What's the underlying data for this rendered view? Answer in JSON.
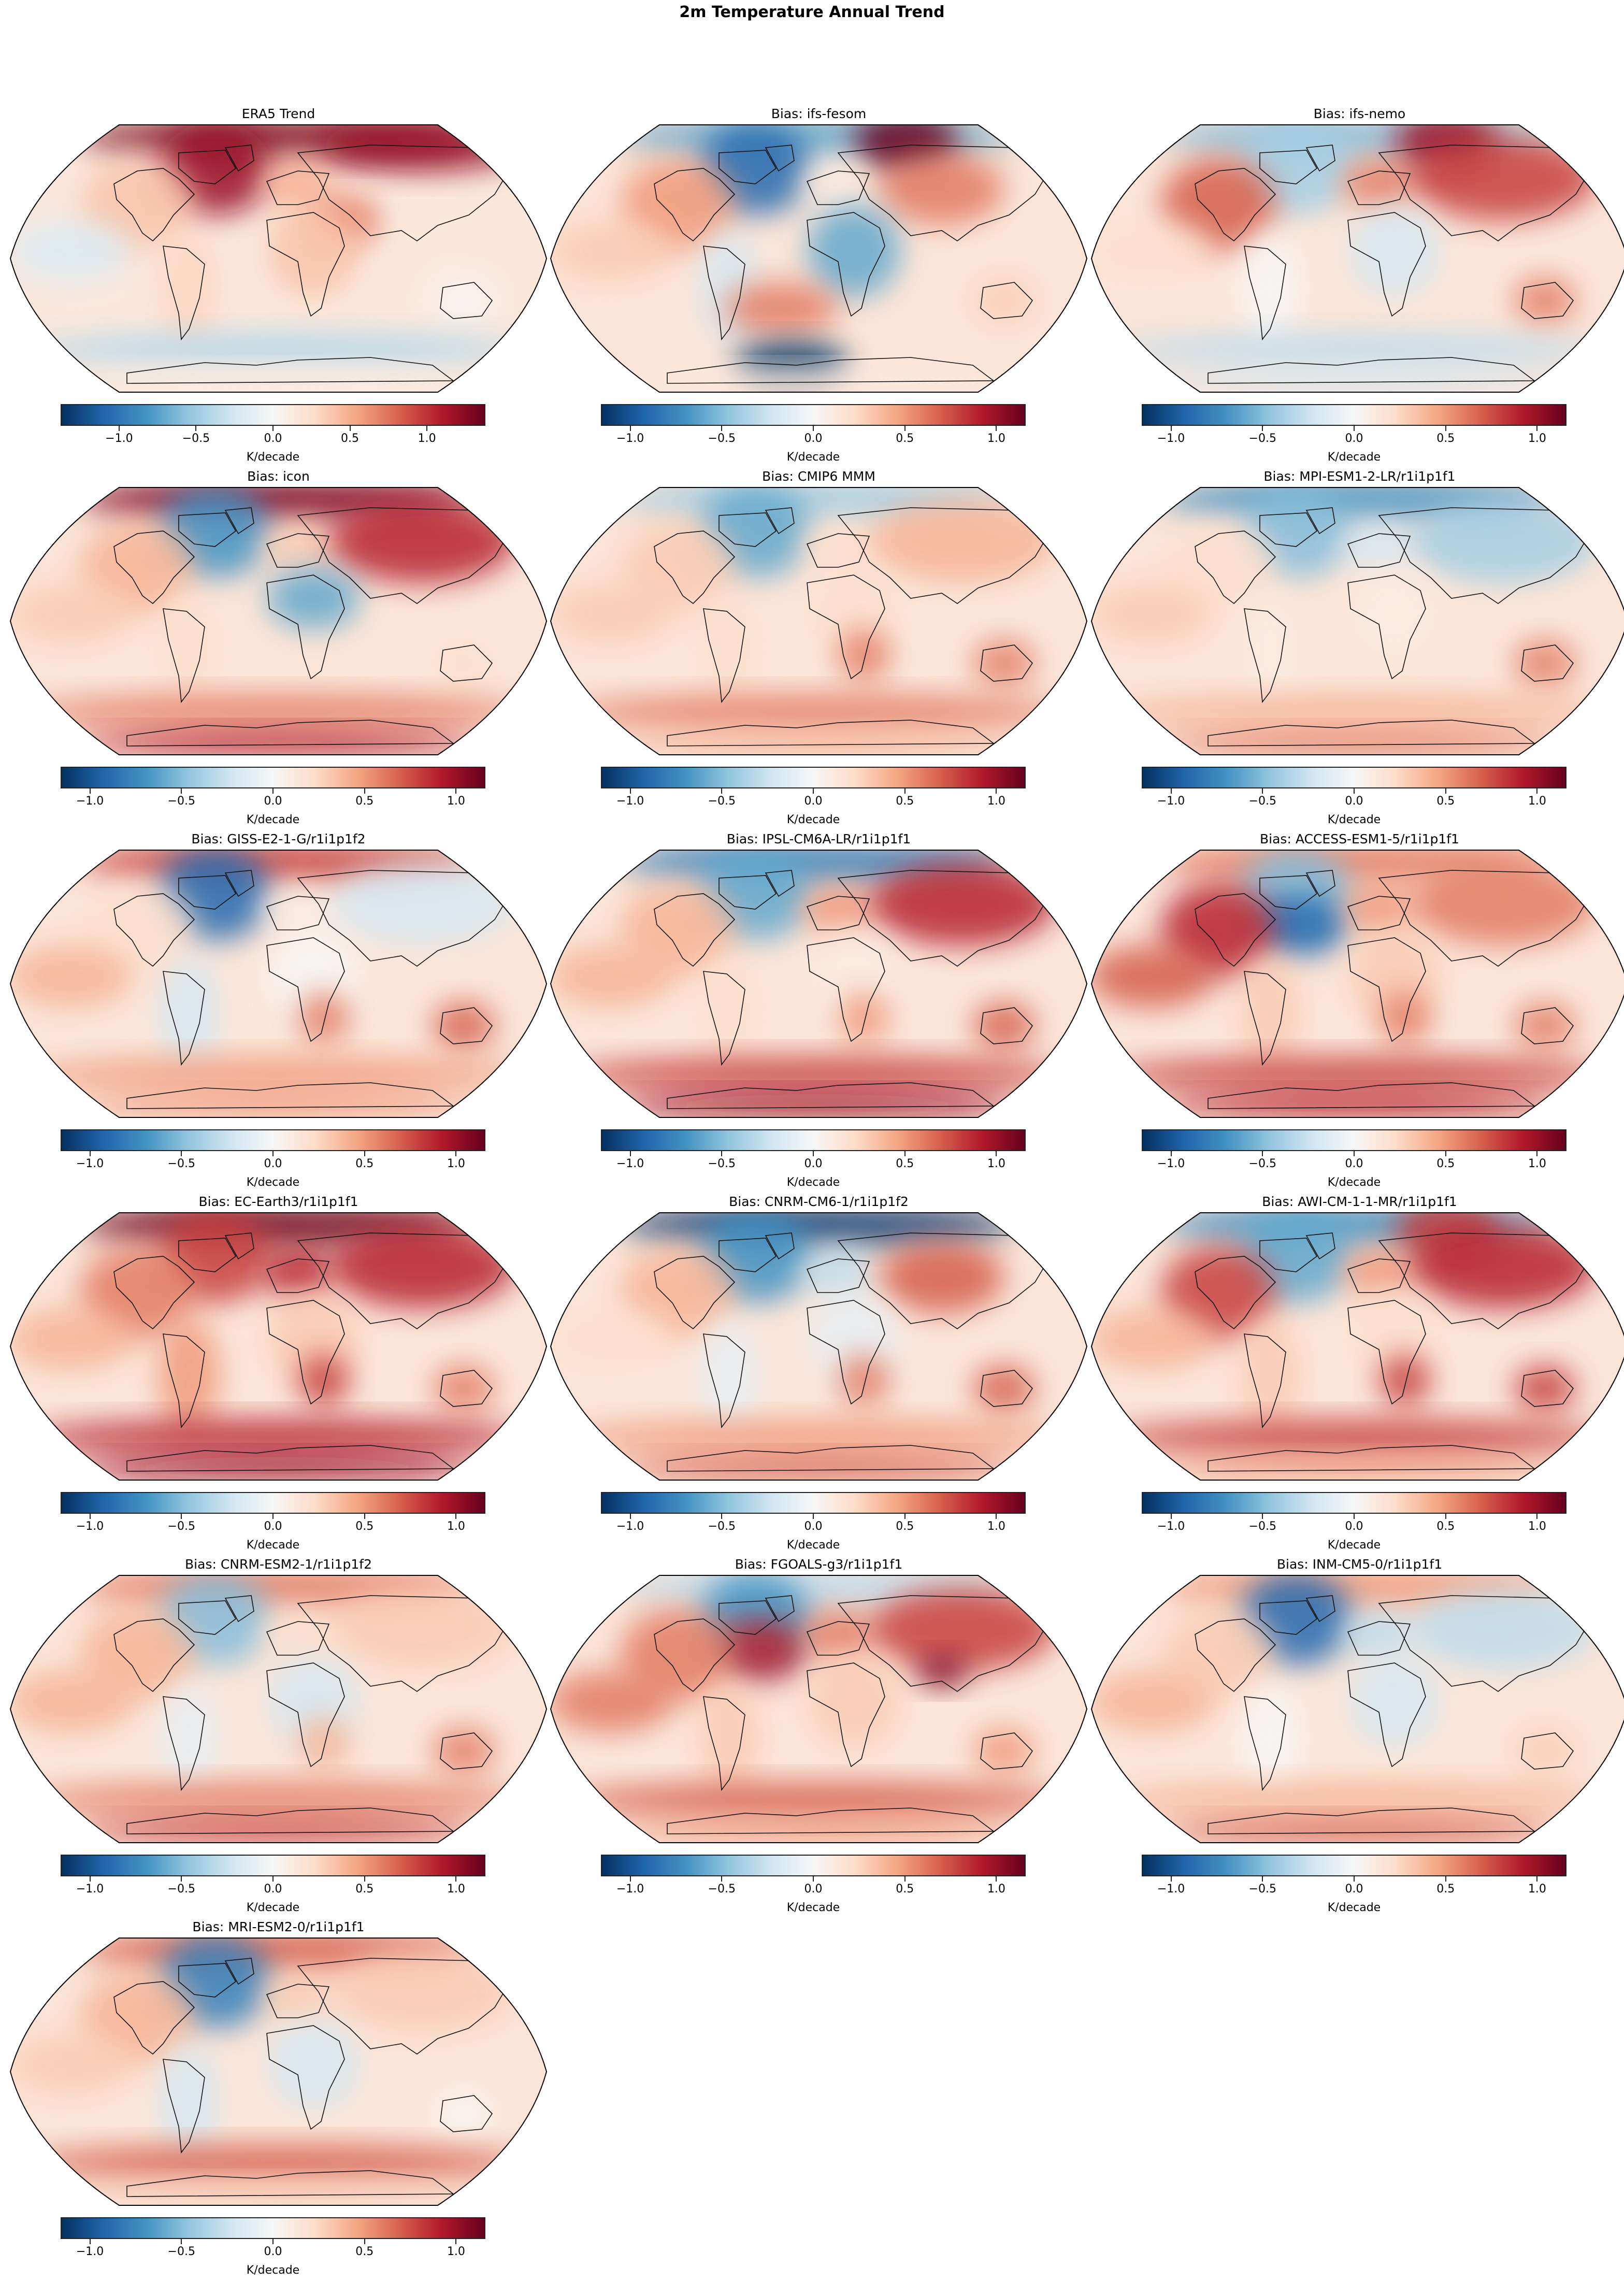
{
  "figure": {
    "suptitle": "2m Temperature Annual Trend",
    "colormap": "RdBu_r",
    "colormap_stops": [
      "#053061",
      "#2166ac",
      "#4393c3",
      "#92c5de",
      "#d1e5f0",
      "#f7f7f7",
      "#fddbc7",
      "#f4a582",
      "#d6604d",
      "#b2182b",
      "#67001f"
    ],
    "projection": "Robinson"
  },
  "panels": [
    {
      "title": "ERA5 Trend",
      "vmin": -1.38,
      "vmax": 1.38,
      "ticks": [
        "−1.0",
        "−0.5",
        "0.0",
        "0.5",
        "1.0"
      ],
      "cbar_label": "K/decade"
    },
    {
      "title": "Bias: ifs-fesom",
      "vmin": -1.16,
      "vmax": 1.16,
      "ticks": [
        "−1.0",
        "−0.5",
        "0.0",
        "0.5",
        "1.0"
      ],
      "cbar_label": "K/decade"
    },
    {
      "title": "Bias: ifs-nemo",
      "vmin": -1.16,
      "vmax": 1.16,
      "ticks": [
        "−1.0",
        "−0.5",
        "0.0",
        "0.5",
        "1.0"
      ],
      "cbar_label": "K/decade"
    },
    {
      "title": "Bias: icon",
      "vmin": -1.16,
      "vmax": 1.16,
      "ticks": [
        "−1.0",
        "−0.5",
        "0.0",
        "0.5",
        "1.0"
      ],
      "cbar_label": "K/decade"
    },
    {
      "title": "Bias: CMIP6 MMM",
      "vmin": -1.16,
      "vmax": 1.16,
      "ticks": [
        "−1.0",
        "−0.5",
        "0.0",
        "0.5",
        "1.0"
      ],
      "cbar_label": "K/decade"
    },
    {
      "title": "Bias: MPI-ESM1-2-LR/r1i1p1f1",
      "vmin": -1.16,
      "vmax": 1.16,
      "ticks": [
        "−1.0",
        "−0.5",
        "0.0",
        "0.5",
        "1.0"
      ],
      "cbar_label": "K/decade"
    },
    {
      "title": "Bias: GISS-E2-1-G/r1i1p1f2",
      "vmin": -1.16,
      "vmax": 1.16,
      "ticks": [
        "−1.0",
        "−0.5",
        "0.0",
        "0.5",
        "1.0"
      ],
      "cbar_label": "K/decade"
    },
    {
      "title": "Bias: IPSL-CM6A-LR/r1i1p1f1",
      "vmin": -1.16,
      "vmax": 1.16,
      "ticks": [
        "−1.0",
        "−0.5",
        "0.0",
        "0.5",
        "1.0"
      ],
      "cbar_label": "K/decade"
    },
    {
      "title": "Bias: ACCESS-ESM1-5/r1i1p1f1",
      "vmin": -1.16,
      "vmax": 1.16,
      "ticks": [
        "−1.0",
        "−0.5",
        "0.0",
        "0.5",
        "1.0"
      ],
      "cbar_label": "K/decade"
    },
    {
      "title": "Bias: EC-Earth3/r1i1p1f1",
      "vmin": -1.16,
      "vmax": 1.16,
      "ticks": [
        "−1.0",
        "−0.5",
        "0.0",
        "0.5",
        "1.0"
      ],
      "cbar_label": "K/decade"
    },
    {
      "title": "Bias: CNRM-CM6-1/r1i1p1f2",
      "vmin": -1.16,
      "vmax": 1.16,
      "ticks": [
        "−1.0",
        "−0.5",
        "0.0",
        "0.5",
        "1.0"
      ],
      "cbar_label": "K/decade"
    },
    {
      "title": "Bias: AWI-CM-1-1-MR/r1i1p1f1",
      "vmin": -1.16,
      "vmax": 1.16,
      "ticks": [
        "−1.0",
        "−0.5",
        "0.0",
        "0.5",
        "1.0"
      ],
      "cbar_label": "K/decade"
    },
    {
      "title": "Bias: CNRM-ESM2-1/r1i1p1f2",
      "vmin": -1.16,
      "vmax": 1.16,
      "ticks": [
        "−1.0",
        "−0.5",
        "0.0",
        "0.5",
        "1.0"
      ],
      "cbar_label": "K/decade"
    },
    {
      "title": "Bias: FGOALS-g3/r1i1p1f1",
      "vmin": -1.16,
      "vmax": 1.16,
      "ticks": [
        "−1.0",
        "−0.5",
        "0.0",
        "0.5",
        "1.0"
      ],
      "cbar_label": "K/decade"
    },
    {
      "title": "Bias: INM-CM5-0/r1i1p1f1",
      "vmin": -1.16,
      "vmax": 1.16,
      "ticks": [
        "−1.0",
        "−0.5",
        "0.0",
        "0.5",
        "1.0"
      ],
      "cbar_label": "K/decade"
    },
    {
      "title": "Bias: MRI-ESM2-0/r1i1p1f1",
      "vmin": -1.16,
      "vmax": 1.16,
      "ticks": [
        "−1.0",
        "−0.5",
        "0.0",
        "0.5",
        "1.0"
      ],
      "cbar_label": "K/decade"
    }
  ],
  "chart_data": {
    "type": "heatmap",
    "title": "2m Temperature Annual Trend",
    "layout": {
      "rows": 6,
      "cols": 3,
      "n_panels": 16,
      "legend_position": "colorbar below each panel",
      "grid": false
    },
    "units": "K/decade",
    "panels": [
      {
        "title": "ERA5 Trend",
        "colorbar_range": [
          -1.38,
          1.38
        ],
        "tick_values": [
          -1.0,
          -0.5,
          0.0,
          0.5,
          1.0
        ],
        "pattern": {
          "arctic": 1.3,
          "canada_greenland": 1.2,
          "siberia_coast": 1.2,
          "n_america": 0.4,
          "europe": 0.5,
          "middle_east": 0.7,
          "africa": 0.4,
          "s_america": 0.3,
          "australia": 0.0,
          "eq_pacific": -0.2,
          "southern_ocean": -0.4,
          "antarctica": 0.1
        }
      },
      {
        "title": "Bias: ifs-fesom",
        "colorbar_range": [
          -1.16,
          1.16
        ],
        "tick_values": [
          -1.0,
          -0.5,
          0.0,
          0.5,
          1.0
        ],
        "pattern": {
          "arctic": -0.6,
          "barents_sea": 1.2,
          "canada_greenland": -0.9,
          "n_america": 0.5,
          "europe": 0.1,
          "central_asia": 0.6,
          "africa": -0.6,
          "s_america": -0.2,
          "australia": 0.3,
          "eq_pacific": 0.3,
          "south_atlantic": 0.6,
          "weddell_sea": -1.2,
          "antarctica": 0.1
        }
      },
      {
        "title": "Bias: ifs-nemo",
        "colorbar_range": [
          -1.16,
          1.16
        ],
        "tick_values": [
          -1.0,
          -0.5,
          0.0,
          0.5,
          1.0
        ],
        "pattern": {
          "arctic": -0.5,
          "barents_sea": 1.0,
          "canada_greenland": -0.4,
          "n_america": 0.7,
          "europe": 0.6,
          "siberia": 0.8,
          "africa": -0.2,
          "s_america": 0.0,
          "australia": 0.6,
          "eq_pacific": 0.2,
          "southern_ocean": -0.3,
          "antarctica": -0.2
        }
      },
      {
        "title": "Bias: icon",
        "colorbar_range": [
          -1.16,
          1.16
        ],
        "tick_values": [
          -1.0,
          -0.5,
          0.0,
          0.5,
          1.0
        ],
        "pattern": {
          "arctic": 1.1,
          "canada_greenland": -0.7,
          "n_america": 0.4,
          "europe": 0.3,
          "siberia": 0.9,
          "sahara_sahel": -0.6,
          "s_america": 0.2,
          "australia": 0.2,
          "eq_pacific": 0.3,
          "southern_ocean": 0.6,
          "antarctica": 0.9
        }
      },
      {
        "title": "Bias: CMIP6 MMM",
        "colorbar_range": [
          -1.16,
          1.16
        ],
        "tick_values": [
          -1.0,
          -0.5,
          0.0,
          0.5,
          1.0
        ],
        "pattern": {
          "arctic": -0.4,
          "canada_greenland": -0.6,
          "n_america": 0.3,
          "europe": 0.2,
          "siberia": 0.4,
          "africa": 0.2,
          "southern_africa": 0.6,
          "s_america": 0.2,
          "australia": 0.6,
          "eq_pacific": 0.3,
          "southern_ocean": 0.6,
          "antarctica": 0.4
        }
      },
      {
        "title": "Bias: MPI-ESM1-2-LR/r1i1p1f1",
        "colorbar_range": [
          -1.16,
          1.16
        ],
        "tick_values": [
          -1.0,
          -0.5,
          0.0,
          0.5,
          1.0
        ],
        "pattern": {
          "arctic": -0.7,
          "canada_greenland": -0.5,
          "n_america": 0.2,
          "europe": -0.2,
          "siberia": -0.4,
          "africa": 0.1,
          "s_america": 0.1,
          "australia": 0.6,
          "eq_pacific": 0.3,
          "southern_ocean": 0.4,
          "antarctica": 0.6
        }
      },
      {
        "title": "Bias: GISS-E2-1-G/r1i1p1f2",
        "colorbar_range": [
          -1.16,
          1.16
        ],
        "tick_values": [
          -1.0,
          -0.5,
          0.0,
          0.5,
          1.0
        ],
        "pattern": {
          "arctic": 0.8,
          "canada_greenland": -0.9,
          "n_america": 0.2,
          "europe": 0.1,
          "siberia": -0.2,
          "africa": 0.0,
          "southern_africa": 0.6,
          "s_america": -0.2,
          "australia": 0.7,
          "eq_pacific": 0.4,
          "southern_ocean": 0.5,
          "antarctica": 0.5
        }
      },
      {
        "title": "Bias: IPSL-CM6A-LR/r1i1p1f1",
        "colorbar_range": [
          -1.16,
          1.16
        ],
        "tick_values": [
          -1.0,
          -0.5,
          0.0,
          0.5,
          1.0
        ],
        "pattern": {
          "arctic": -0.8,
          "canada_greenland": -0.6,
          "n_america": 0.4,
          "europe": 0.5,
          "siberia": 0.9,
          "africa": 0.1,
          "southern_africa": 0.5,
          "s_america": 0.2,
          "australia": 0.7,
          "eq_pacific": 0.4,
          "southern_ocean": 0.8,
          "antarctica": 1.0
        }
      },
      {
        "title": "Bias: ACCESS-ESM1-5/r1i1p1f1",
        "colorbar_range": [
          -1.16,
          1.16
        ],
        "tick_values": [
          -1.0,
          -0.5,
          0.0,
          0.5,
          1.0
        ],
        "pattern": {
          "arctic": 0.6,
          "canada_greenland": -0.5,
          "n_atlantic": -0.9,
          "n_america": 0.9,
          "europe": 0.5,
          "siberia": 0.6,
          "africa": 0.3,
          "southern_africa": 0.6,
          "s_america": 0.3,
          "australia": 0.6,
          "eq_pacific": 0.7,
          "southern_ocean": 0.8,
          "antarctica": 0.9
        }
      },
      {
        "title": "Bias: EC-Earth3/r1i1p1f1",
        "colorbar_range": [
          -1.16,
          1.16
        ],
        "tick_values": [
          -1.0,
          -0.5,
          0.0,
          0.5,
          1.0
        ],
        "pattern": {
          "arctic": 1.2,
          "canada_greenland": 0.8,
          "n_america": 0.6,
          "europe": 0.9,
          "siberia": 0.9,
          "africa": 0.3,
          "southern_africa": 0.8,
          "s_america": 0.5,
          "australia": 0.6,
          "eq_pacific": 0.4,
          "southern_ocean": 0.9,
          "antarctica": 1.0
        }
      },
      {
        "title": "Bias: CNRM-CM6-1/r1i1p1f2",
        "colorbar_range": [
          -1.16,
          1.16
        ],
        "tick_values": [
          -1.0,
          -0.5,
          0.0,
          0.5,
          1.0
        ],
        "pattern": {
          "arctic": -1.1,
          "canada_greenland": -0.7,
          "n_america": 0.4,
          "europe": -0.3,
          "central_asia": 0.7,
          "africa": -0.1,
          "southern_africa": 0.6,
          "s_america": -0.1,
          "australia": 0.7,
          "eq_pacific": 0.2,
          "southern_ocean": 0.5,
          "antarctica": 0.7
        }
      },
      {
        "title": "Bias: AWI-CM-1-1-MR/r1i1p1f1",
        "colorbar_range": [
          -1.16,
          1.16
        ],
        "tick_values": [
          -1.0,
          -0.5,
          0.0,
          0.5,
          1.0
        ],
        "pattern": {
          "arctic": -0.7,
          "barents_sea": 0.8,
          "canada_greenland": -0.6,
          "n_america": 0.8,
          "europe": 0.5,
          "siberia": 0.9,
          "africa": 0.2,
          "southern_africa": 0.8,
          "s_america": 0.3,
          "australia": 0.8,
          "eq_pacific": 0.4,
          "southern_ocean": 0.8,
          "antarctica": 0.5
        }
      },
      {
        "title": "Bias: CNRM-ESM2-1/r1i1p1f2",
        "colorbar_range": [
          -1.16,
          1.16
        ],
        "tick_values": [
          -1.0,
          -0.5,
          0.0,
          0.5,
          1.0
        ],
        "pattern": {
          "arctic": 0.6,
          "canada_greenland": -0.5,
          "n_america": 0.4,
          "europe": 0.2,
          "siberia": 0.3,
          "africa": -0.2,
          "southern_africa": 0.4,
          "s_america": -0.1,
          "australia": 0.6,
          "eq_pacific": 0.4,
          "southern_ocean": 0.6,
          "antarctica": 0.8
        }
      },
      {
        "title": "Bias: FGOALS-g3/r1i1p1f1",
        "colorbar_range": [
          -1.16,
          1.16
        ],
        "tick_values": [
          -1.0,
          -0.5,
          0.0,
          0.5,
          1.0
        ],
        "pattern": {
          "arctic": -0.3,
          "canada_greenland": -0.7,
          "n_atlantic": 0.9,
          "n_america": 0.6,
          "europe": 0.6,
          "siberia": 0.8,
          "tibet": 1.1,
          "africa": 0.3,
          "s_america": 0.3,
          "australia": 0.5,
          "eq_pacific": 0.6,
          "southern_ocean": 0.7,
          "antarctica": 0.5
        }
      },
      {
        "title": "Bias: INM-CM5-0/r1i1p1f1",
        "colorbar_range": [
          -1.16,
          1.16
        ],
        "tick_values": [
          -1.0,
          -0.5,
          0.0,
          0.5,
          1.0
        ],
        "pattern": {
          "arctic": 0.5,
          "canada_greenland": -0.9,
          "n_america": 0.3,
          "europe": -0.3,
          "siberia": -0.3,
          "africa": -0.2,
          "s_america": 0.0,
          "australia": 0.3,
          "eq_pacific": 0.4,
          "southern_ocean": 0.4,
          "antarctica": 0.7
        }
      },
      {
        "title": "Bias: MRI-ESM2-0/r1i1p1f1",
        "colorbar_range": [
          -1.16,
          1.16
        ],
        "tick_values": [
          -1.0,
          -0.5,
          0.0,
          0.5,
          1.0
        ],
        "pattern": {
          "arctic": 0.7,
          "canada_greenland": -0.8,
          "n_america": 0.4,
          "europe": 0.3,
          "siberia": 0.3,
          "africa": -0.2,
          "s_america": -0.2,
          "australia": 0.0,
          "eq_pacific": 0.3,
          "southern_ocean": 0.7,
          "antarctica": 0.3
        }
      }
    ]
  }
}
